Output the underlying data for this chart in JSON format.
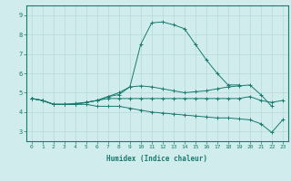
{
  "title": "",
  "xlabel": "Humidex (Indice chaleur)",
  "x_values": [
    0,
    1,
    2,
    3,
    4,
    5,
    6,
    7,
    8,
    9,
    10,
    11,
    12,
    13,
    14,
    15,
    16,
    17,
    18,
    19,
    20,
    21,
    22,
    23
  ],
  "line1": [
    4.7,
    4.6,
    4.4,
    4.4,
    4.4,
    4.5,
    4.6,
    4.7,
    4.7,
    4.7,
    4.7,
    4.7,
    4.7,
    4.7,
    4.7,
    4.7,
    4.7,
    4.7,
    4.7,
    4.7,
    4.8,
    4.6,
    4.5,
    4.6
  ],
  "line2": [
    4.7,
    4.6,
    4.4,
    4.4,
    4.4,
    4.5,
    4.6,
    4.8,
    4.9,
    5.3,
    5.35,
    5.3,
    5.2,
    5.1,
    5.0,
    5.05,
    5.1,
    5.2,
    5.3,
    5.35,
    5.4,
    4.9,
    4.3,
    null
  ],
  "line3": [
    4.7,
    4.6,
    4.4,
    4.4,
    4.4,
    4.4,
    4.3,
    4.3,
    4.3,
    4.2,
    4.1,
    4.0,
    3.95,
    3.9,
    3.85,
    3.8,
    3.75,
    3.7,
    3.7,
    3.65,
    3.6,
    3.4,
    2.95,
    3.6
  ],
  "line4": [
    4.7,
    4.6,
    4.4,
    4.4,
    4.45,
    4.5,
    4.6,
    4.8,
    5.0,
    5.3,
    7.5,
    8.6,
    8.65,
    8.5,
    8.3,
    7.5,
    6.7,
    6.0,
    5.4,
    5.4,
    null,
    null,
    null,
    null
  ],
  "line_color": "#1a7a6e",
  "bg_color": "#d0ecec",
  "grid_color": "#b8d8d8",
  "ylim": [
    2.5,
    9.5
  ],
  "xlim": [
    -0.5,
    23.5
  ],
  "yticks": [
    3,
    4,
    5,
    6,
    7,
    8,
    9
  ],
  "xticks": [
    0,
    1,
    2,
    3,
    4,
    5,
    6,
    7,
    8,
    9,
    10,
    11,
    12,
    13,
    14,
    15,
    16,
    17,
    18,
    19,
    20,
    21,
    22,
    23
  ]
}
